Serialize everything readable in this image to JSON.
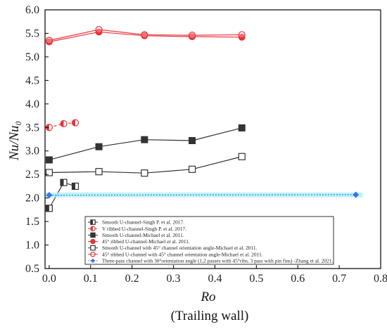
{
  "chart_data": {
    "type": "scatter",
    "xlabel": "Ro",
    "xlabel_note": "(Trailing wall)",
    "ylabel": "Nu/Nu₀",
    "xlim": [
      -0.01,
      0.8
    ],
    "ylim": [
      0.5,
      6.0
    ],
    "x_ticks": [
      "0.0",
      "0.1",
      "0.2",
      "0.3",
      "0.4",
      "0.5",
      "0.6",
      "0.7",
      "0.8"
    ],
    "y_ticks": [
      "0.5",
      "1.0",
      "1.5",
      "2.0",
      "2.5",
      "3.0",
      "3.5",
      "4.0",
      "4.5",
      "5.0",
      "5.5",
      "6.0"
    ],
    "legend_position": "bottom-center",
    "series": [
      {
        "name": "Smooth U-channel-Singh P. et al. 2017.",
        "color": "#333333",
        "marker": "square-half",
        "line": "solid",
        "x": [
          0.0,
          0.035,
          0.063
        ],
        "y": [
          1.78,
          2.33,
          2.25
        ]
      },
      {
        "name": "V ribbed U-channel-Singh P. et al. 2017.",
        "color": "#e8333a",
        "marker": "circle-half",
        "line": "dashed",
        "x": [
          0.0,
          0.035,
          0.063
        ],
        "y": [
          3.5,
          3.58,
          3.6
        ]
      },
      {
        "name": "Smooth U-channel-Michael et al. 2011.",
        "color": "#333333",
        "marker": "square-filled",
        "line": "solid",
        "x": [
          0.0,
          0.12,
          0.23,
          0.345,
          0.465
        ],
        "y": [
          2.81,
          3.09,
          3.24,
          3.22,
          3.49
        ]
      },
      {
        "name": "45° ribbed U-channel-Michael et al. 2011.",
        "color": "#e8333a",
        "marker": "circle-filled",
        "line": "solid",
        "x": [
          0.0,
          0.12,
          0.23,
          0.345,
          0.465
        ],
        "y": [
          5.32,
          5.53,
          5.45,
          5.43,
          5.42
        ]
      },
      {
        "name": "Smooth U-channel with 45° channel orientation angle-Michael et al. 2011.",
        "color": "#333333",
        "marker": "square-open",
        "line": "solid",
        "x": [
          0.0,
          0.12,
          0.23,
          0.345,
          0.465
        ],
        "y": [
          2.54,
          2.56,
          2.53,
          2.61,
          2.88
        ]
      },
      {
        "name": "45° ribbed U-channel with 45° channel orientation angle-Michael et al. 2011.",
        "color": "#e8333a",
        "marker": "circle-open",
        "line": "solid",
        "x": [
          0.0,
          0.12,
          0.23,
          0.345,
          0.465
        ],
        "y": [
          5.35,
          5.58,
          5.47,
          5.46,
          5.47
        ]
      },
      {
        "name": "Three-pass channel with 30°orientation angle (1,2 passes with 45°ribs, 3 pass with pin fins) -Zhang et al. 2021.",
        "color": "#3b73e8",
        "marker": "diamond",
        "line": "dotted",
        "x": [
          0.0,
          0.74
        ],
        "y": [
          2.06,
          2.07
        ]
      }
    ]
  }
}
